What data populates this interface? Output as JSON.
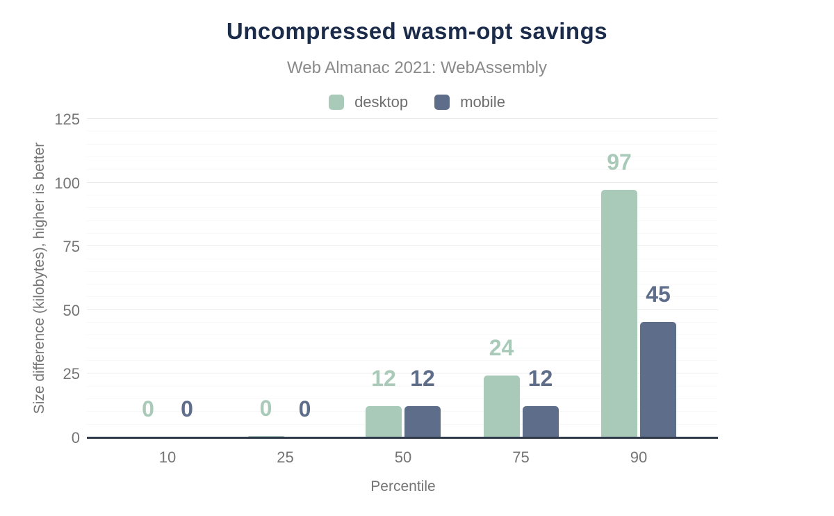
{
  "header": {
    "title": "Uncompressed wasm-opt savings",
    "subtitle": "Web Almanac 2021: WebAssembly"
  },
  "chart_data": {
    "type": "bar",
    "title": "Uncompressed wasm-opt savings",
    "subtitle": "Web Almanac 2021: WebAssembly",
    "categories": [
      "10",
      "25",
      "50",
      "75",
      "90"
    ],
    "series": [
      {
        "name": "desktop",
        "color": "#a9cab9",
        "values": [
          0,
          0.4,
          12,
          24,
          97
        ],
        "labels": [
          "0",
          "0",
          "12",
          "24",
          "97"
        ]
      },
      {
        "name": "mobile",
        "color": "#5e6e8a",
        "values": [
          0,
          0,
          12,
          12,
          45
        ],
        "labels": [
          "0",
          "0",
          "12",
          "12",
          "45"
        ]
      }
    ],
    "xlabel": "Percentile",
    "ylabel": "Size difference (kilobytes), higher is better",
    "ylim": [
      0,
      125
    ],
    "yticks": [
      0,
      25,
      50,
      75,
      100,
      125
    ],
    "minor_tick_step": 5,
    "legend_position": "top",
    "grid": true
  },
  "colors": {
    "title_text": "#1b2b4a",
    "subtitle_text": "#8a8a8a",
    "tick_text": "#757575",
    "legend_text": "#6e6e6e",
    "axis_line": "#2f3a4a",
    "grid_major": "#ebebeb",
    "grid_minor": "#f7f7f7",
    "desktop": "#a9cab9",
    "mobile": "#5e6e8a"
  }
}
